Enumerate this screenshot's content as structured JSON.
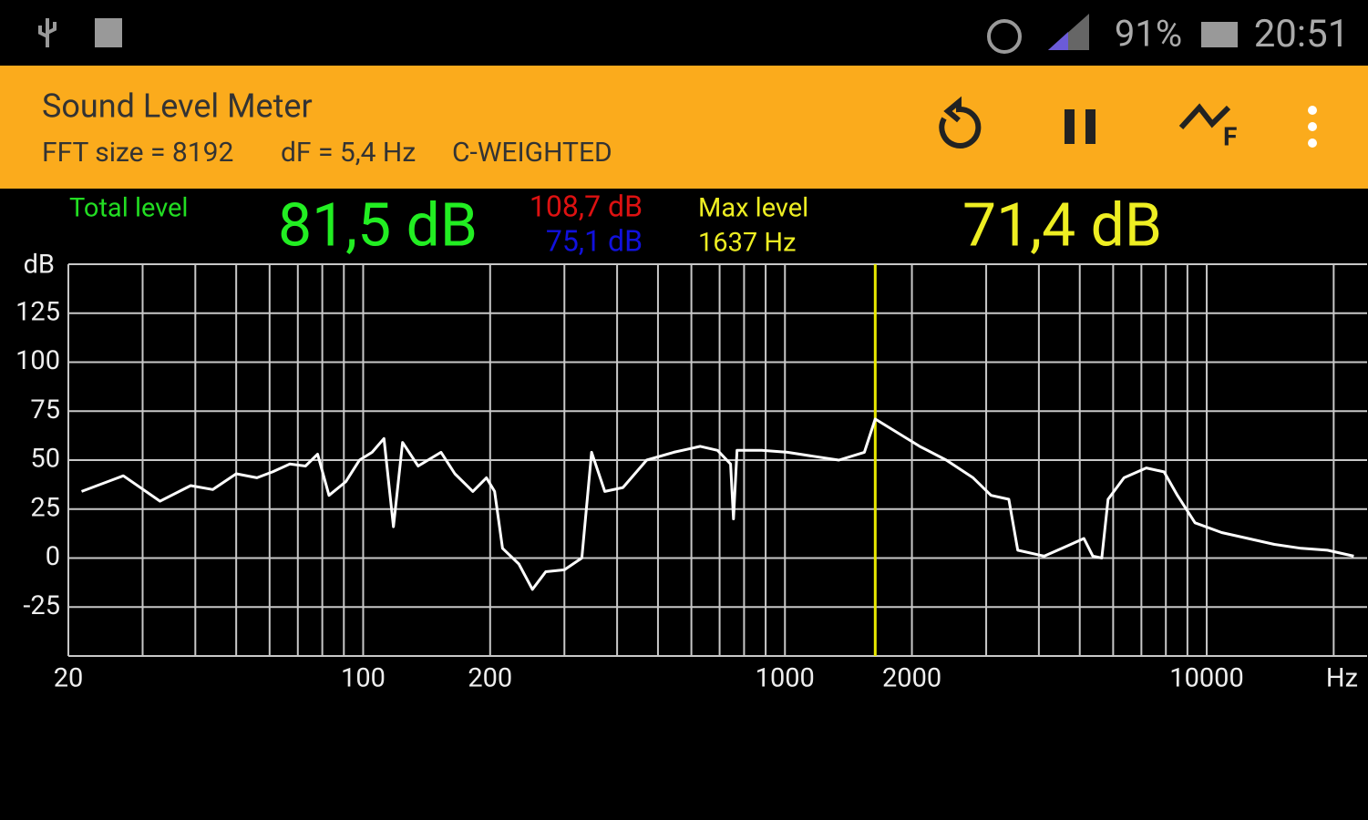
{
  "status_bar": {
    "battery": "91%",
    "time": "20:51"
  },
  "app_bar": {
    "title": "Sound Level Meter",
    "fft_size": "FFT size = 8192",
    "df": "dF = 5,4 Hz",
    "weighting": "C-WEIGHTED"
  },
  "readouts": {
    "total_label": "Total level",
    "total_value": "81,5 dB",
    "peak_high": "108,7 dB",
    "peak_low": "75,1 dB",
    "max_label": "Max level",
    "max_freq": "1637 Hz",
    "max_value": "71,4 dB"
  },
  "chart_data": {
    "type": "line",
    "y_label": "dB",
    "x_label": "Hz",
    "log_x": true,
    "grid": true,
    "color": "#ffffff",
    "marker_color": "#e8e800",
    "xlim": [
      20,
      24000
    ],
    "ylim": [
      -50,
      150
    ],
    "xticks": [
      20,
      100,
      200,
      1000,
      2000,
      10000
    ],
    "xminor": [
      30,
      40,
      50,
      60,
      70,
      80,
      90,
      300,
      400,
      500,
      600,
      700,
      800,
      900,
      3000,
      4000,
      5000,
      6000,
      7000,
      8000,
      9000,
      20000
    ],
    "yticks": [
      -25,
      0,
      25,
      50,
      75,
      100,
      125
    ],
    "marker": 1637,
    "x": [
      21.5,
      27,
      33,
      39,
      44,
      50,
      56,
      61,
      67,
      73,
      78,
      83,
      91,
      98,
      105,
      112,
      118,
      124,
      135,
      153,
      165,
      182,
      196,
      205,
      214,
      234,
      252,
      271,
      300,
      330,
      348,
      374,
      413,
      470,
      545,
      630,
      692,
      743,
      755,
      770,
      881,
      1013,
      1164,
      1342,
      1543,
      1637,
      2087,
      2413,
      2793,
      3080,
      3395,
      3565,
      4118,
      4648,
      5116,
      5370,
      5640,
      5835,
      6368,
      7190,
      7920,
      8521,
      9380,
      10850,
      12530,
      14480,
      16740,
      19330,
      22320
    ],
    "values": [
      34,
      42,
      29,
      37,
      35,
      43,
      41,
      44,
      48,
      47,
      53,
      32,
      39,
      50,
      54,
      61,
      16,
      59,
      47,
      54,
      43,
      34,
      41,
      34,
      5,
      -3,
      -16,
      -7,
      -6,
      0,
      54,
      34,
      36,
      50,
      54,
      57,
      55,
      48,
      20,
      55,
      55,
      54,
      52,
      50,
      54,
      71,
      57,
      50,
      41,
      32,
      30,
      4,
      1,
      6,
      10,
      1,
      0,
      30,
      41,
      46,
      44,
      32,
      18,
      13,
      10,
      7,
      5,
      4,
      1
    ]
  }
}
